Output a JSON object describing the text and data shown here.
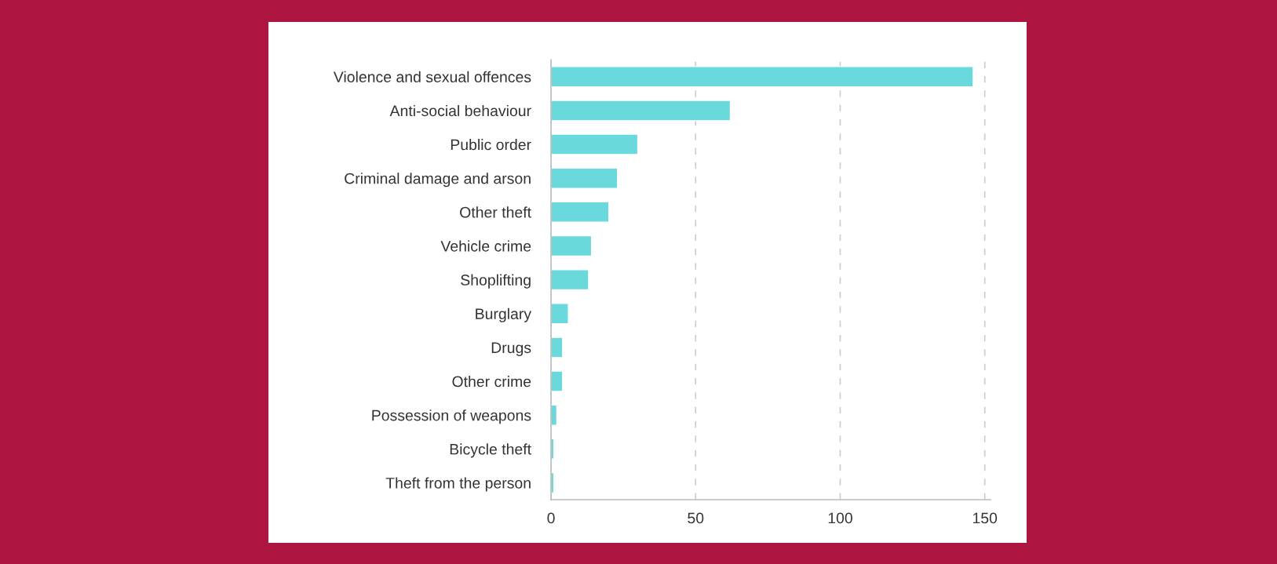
{
  "chart_data": {
    "type": "bar",
    "orientation": "horizontal",
    "categories": [
      "Violence and sexual offences",
      "Anti-social behaviour",
      "Public order",
      "Criminal damage and arson",
      "Other theft",
      "Vehicle crime",
      "Shoplifting",
      "Burglary",
      "Drugs",
      "Other crime",
      "Possession of weapons",
      "Bicycle theft",
      "Theft from the person"
    ],
    "values": [
      146,
      62,
      30,
      23,
      20,
      14,
      13,
      6,
      4,
      4,
      2,
      1,
      1
    ],
    "color": "#6ad9db",
    "xlim": [
      0,
      152
    ],
    "xticks": [
      0,
      50,
      100,
      150
    ],
    "grid": "x"
  }
}
